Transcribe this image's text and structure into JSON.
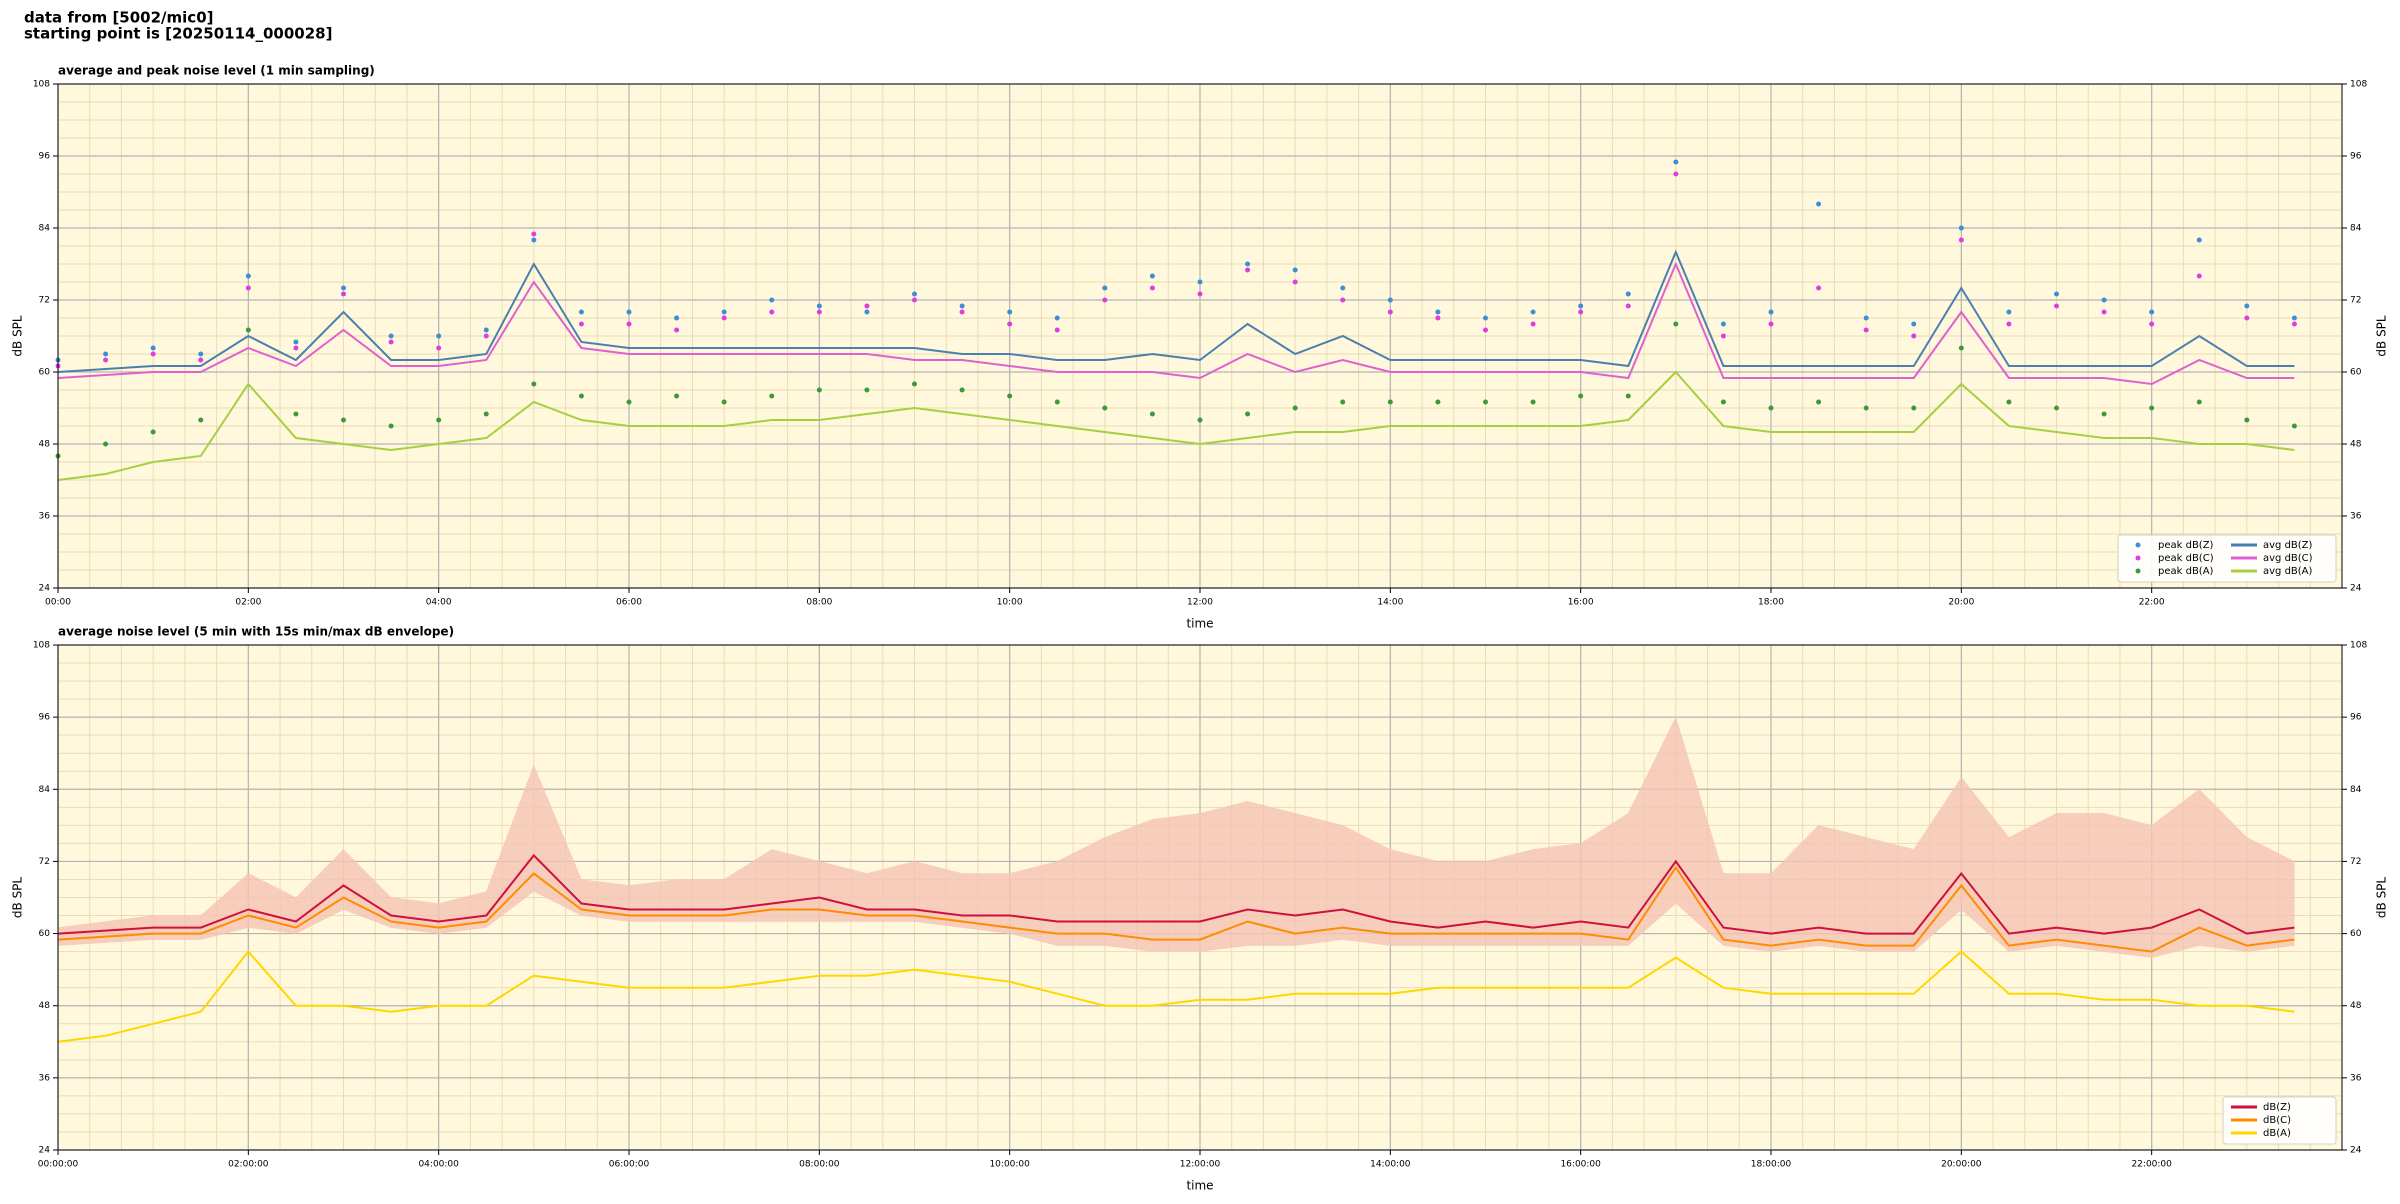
{
  "header": {
    "line1": "data from [5002/mic0]",
    "line2": "starting point is [20250114_000028]"
  },
  "chart_data": [
    {
      "type": "line",
      "title": "average and peak noise level (1 min sampling)",
      "xlabel": "time",
      "ylabel": "dB SPL",
      "xlim": [
        0,
        24
      ],
      "ylim": [
        24,
        108
      ],
      "yticks": [
        24,
        36,
        48,
        60,
        72,
        84,
        96,
        108
      ],
      "xticks": [
        {
          "value": 0,
          "label": "00:00"
        },
        {
          "value": 2,
          "label": "02:00"
        },
        {
          "value": 4,
          "label": "04:00"
        },
        {
          "value": 6,
          "label": "06:00"
        },
        {
          "value": 8,
          "label": "08:00"
        },
        {
          "value": 10,
          "label": "10:00"
        },
        {
          "value": 12,
          "label": "12:00"
        },
        {
          "value": 14,
          "label": "14:00"
        },
        {
          "value": 16,
          "label": "16:00"
        },
        {
          "value": 18,
          "label": "18:00"
        },
        {
          "value": 20,
          "label": "20:00"
        },
        {
          "value": 22,
          "label": "22:00"
        }
      ],
      "grid": true,
      "legend": "lower right",
      "legend_columns": 2,
      "background": "#fff8dc",
      "x": [
        0,
        0.5,
        1,
        1.5,
        2,
        2.5,
        3,
        3.5,
        4,
        4.5,
        5,
        5.5,
        6,
        6.5,
        7,
        7.5,
        8,
        8.5,
        9,
        9.5,
        10,
        10.5,
        11,
        11.5,
        12,
        12.5,
        13,
        13.5,
        14,
        14.5,
        15,
        15.5,
        16,
        16.5,
        17,
        17.5,
        18,
        18.5,
        19,
        19.5,
        20,
        20.5,
        21,
        21.5,
        22,
        22.5,
        23,
        23.5
      ],
      "series": [
        {
          "name": "peak dB(Z)",
          "style": "scatter",
          "color": "#3b8fd9",
          "values": [
            62,
            63,
            64,
            63,
            76,
            65,
            74,
            66,
            66,
            67,
            82,
            70,
            70,
            69,
            70,
            72,
            71,
            70,
            73,
            71,
            70,
            69,
            74,
            76,
            75,
            78,
            77,
            74,
            72,
            70,
            69,
            70,
            71,
            73,
            95,
            68,
            70,
            88,
            69,
            68,
            84,
            70,
            73,
            72,
            70,
            82,
            71,
            69
          ]
        },
        {
          "name": "peak dB(C)",
          "style": "scatter",
          "color": "#e03ce0",
          "values": [
            61,
            62,
            63,
            62,
            74,
            64,
            73,
            65,
            64,
            66,
            83,
            68,
            68,
            67,
            69,
            70,
            70,
            71,
            72,
            70,
            68,
            67,
            72,
            74,
            73,
            77,
            75,
            72,
            70,
            69,
            67,
            68,
            70,
            71,
            93,
            66,
            68,
            74,
            67,
            66,
            82,
            68,
            71,
            70,
            68,
            76,
            69,
            68
          ]
        },
        {
          "name": "peak dB(A)",
          "style": "scatter",
          "color": "#3c9a3c",
          "values": [
            46,
            48,
            50,
            52,
            67,
            53,
            52,
            51,
            52,
            53,
            58,
            56,
            55,
            56,
            55,
            56,
            57,
            57,
            58,
            57,
            56,
            55,
            54,
            53,
            52,
            53,
            54,
            55,
            55,
            55,
            55,
            55,
            56,
            56,
            68,
            55,
            54,
            55,
            54,
            54,
            64,
            55,
            54,
            53,
            54,
            55,
            52,
            51
          ]
        },
        {
          "name": "avg dB(Z)",
          "style": "line",
          "color": "#4a7fb0",
          "values": [
            60,
            60.5,
            61,
            61,
            66,
            62,
            70,
            62,
            62,
            63,
            78,
            65,
            64,
            64,
            64,
            64,
            64,
            64,
            64,
            63,
            63,
            62,
            62,
            63,
            62,
            68,
            63,
            66,
            62,
            62,
            62,
            62,
            62,
            61,
            80,
            61,
            61,
            61,
            61,
            61,
            74,
            61,
            61,
            61,
            61,
            66,
            61,
            61
          ]
        },
        {
          "name": "avg dB(C)",
          "style": "line",
          "color": "#e060d0",
          "values": [
            59,
            59.5,
            60,
            60,
            64,
            61,
            67,
            61,
            61,
            62,
            75,
            64,
            63,
            63,
            63,
            63,
            63,
            63,
            62,
            62,
            61,
            60,
            60,
            60,
            59,
            63,
            60,
            62,
            60,
            60,
            60,
            60,
            60,
            59,
            78,
            59,
            59,
            59,
            59,
            59,
            70,
            59,
            59,
            59,
            58,
            62,
            59,
            59
          ]
        },
        {
          "name": "avg dB(A)",
          "style": "line",
          "color": "#a6d040",
          "values": [
            42,
            43,
            45,
            46,
            58,
            49,
            48,
            47,
            48,
            49,
            55,
            52,
            51,
            51,
            51,
            52,
            52,
            53,
            54,
            53,
            52,
            51,
            50,
            49,
            48,
            49,
            50,
            50,
            51,
            51,
            51,
            51,
            51,
            52,
            60,
            51,
            50,
            50,
            50,
            50,
            58,
            51,
            50,
            49,
            49,
            48,
            48,
            47
          ]
        }
      ]
    },
    {
      "type": "line",
      "title": "average noise level (5 min with 15s min/max dB envelope)",
      "xlabel": "time",
      "ylabel": "dB SPL",
      "xlim": [
        0,
        24
      ],
      "ylim": [
        24,
        108
      ],
      "yticks": [
        24,
        36,
        48,
        60,
        72,
        84,
        96,
        108
      ],
      "xticks": [
        {
          "value": 0,
          "label": "00:00:00"
        },
        {
          "value": 2,
          "label": "02:00:00"
        },
        {
          "value": 4,
          "label": "04:00:00"
        },
        {
          "value": 6,
          "label": "06:00:00"
        },
        {
          "value": 8,
          "label": "08:00:00"
        },
        {
          "value": 10,
          "label": "10:00:00"
        },
        {
          "value": 12,
          "label": "12:00:00"
        },
        {
          "value": 14,
          "label": "14:00:00"
        },
        {
          "value": 16,
          "label": "16:00:00"
        },
        {
          "value": 18,
          "label": "18:00:00"
        },
        {
          "value": 20,
          "label": "20:00:00"
        },
        {
          "value": 22,
          "label": "22:00:00"
        }
      ],
      "grid": true,
      "legend": "lower right",
      "legend_columns": 1,
      "background": "#fff8dc",
      "x": [
        0,
        0.5,
        1,
        1.5,
        2,
        2.5,
        3,
        3.5,
        4,
        4.5,
        5,
        5.5,
        6,
        6.5,
        7,
        7.5,
        8,
        8.5,
        9,
        9.5,
        10,
        10.5,
        11,
        11.5,
        12,
        12.5,
        13,
        13.5,
        14,
        14.5,
        15,
        15.5,
        16,
        16.5,
        17,
        17.5,
        18,
        18.5,
        19,
        19.5,
        20,
        20.5,
        21,
        21.5,
        22,
        22.5,
        23,
        23.5
      ],
      "envelope": {
        "color": "#f5c4b4",
        "lower": [
          58,
          58.5,
          59,
          59,
          61,
          60,
          64,
          61,
          60,
          61,
          67,
          63,
          62,
          62,
          62,
          62,
          62,
          62,
          62,
          61,
          60,
          58,
          58,
          57,
          57,
          58,
          58,
          59,
          58,
          58,
          58,
          58,
          58,
          58,
          65,
          58,
          57,
          58,
          57,
          57,
          64,
          57,
          58,
          57,
          56,
          58,
          57,
          58
        ],
        "upper": [
          61,
          62,
          63,
          63,
          70,
          66,
          74,
          66,
          65,
          67,
          88,
          69,
          68,
          69,
          69,
          74,
          72,
          70,
          72,
          70,
          70,
          72,
          76,
          79,
          80,
          82,
          80,
          78,
          74,
          72,
          72,
          74,
          75,
          80,
          96,
          70,
          70,
          78,
          76,
          74,
          86,
          76,
          80,
          80,
          78,
          84,
          76,
          72
        ]
      },
      "series": [
        {
          "name": "dB(Z)",
          "style": "line",
          "color": "#d0103c",
          "values": [
            60,
            60.5,
            61,
            61,
            64,
            62,
            68,
            63,
            62,
            63,
            73,
            65,
            64,
            64,
            64,
            65,
            66,
            64,
            64,
            63,
            63,
            62,
            62,
            62,
            62,
            64,
            63,
            64,
            62,
            61,
            62,
            61,
            62,
            61,
            72,
            61,
            60,
            61,
            60,
            60,
            70,
            60,
            61,
            60,
            61,
            64,
            60,
            61
          ]
        },
        {
          "name": "dB(C)",
          "style": "line",
          "color": "#ff8c00",
          "values": [
            59,
            59.5,
            60,
            60,
            63,
            61,
            66,
            62,
            61,
            62,
            70,
            64,
            63,
            63,
            63,
            64,
            64,
            63,
            63,
            62,
            61,
            60,
            60,
            59,
            59,
            62,
            60,
            61,
            60,
            60,
            60,
            60,
            60,
            59,
            71,
            59,
            58,
            59,
            58,
            58,
            68,
            58,
            59,
            58,
            57,
            61,
            58,
            59
          ]
        },
        {
          "name": "dB(A)",
          "style": "line",
          "color": "#ffd700",
          "values": [
            42,
            43,
            45,
            47,
            57,
            48,
            48,
            47,
            48,
            48,
            53,
            52,
            51,
            51,
            51,
            52,
            53,
            53,
            54,
            53,
            52,
            50,
            48,
            48,
            49,
            49,
            50,
            50,
            50,
            51,
            51,
            51,
            51,
            51,
            56,
            51,
            50,
            50,
            50,
            50,
            57,
            50,
            50,
            49,
            49,
            48,
            48,
            47
          ]
        }
      ]
    }
  ]
}
